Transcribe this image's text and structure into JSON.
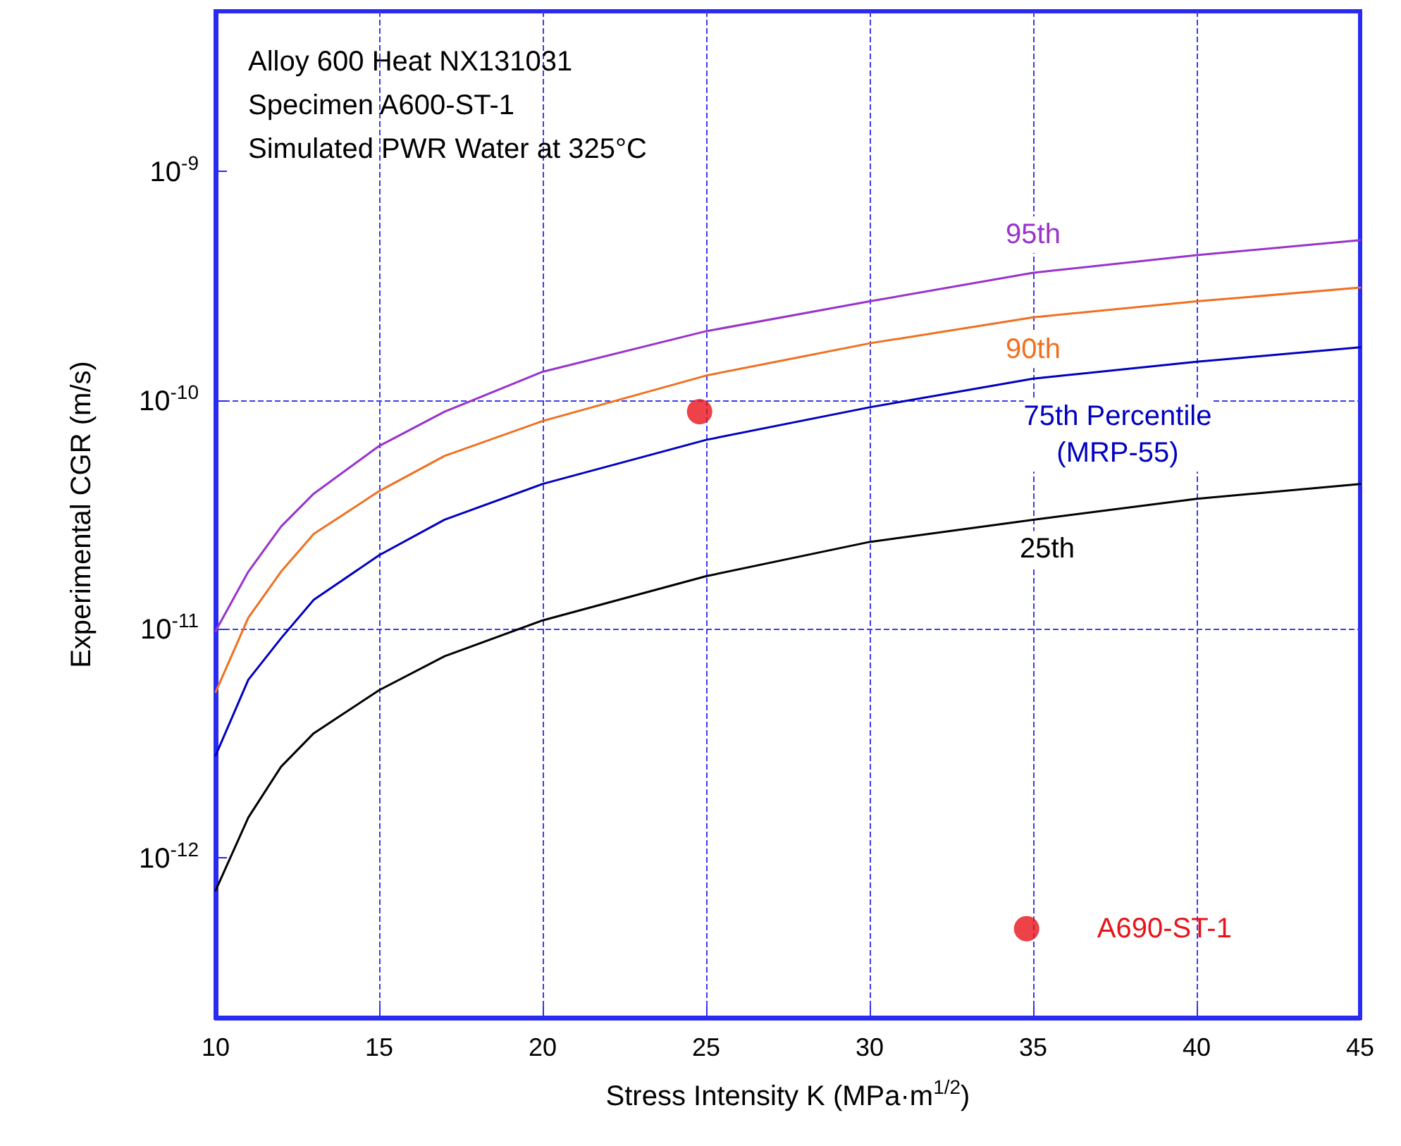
{
  "chart_data": {
    "type": "line",
    "xlabel": "Stress Intensity K (MPa·m$^{1/2}$)",
    "ylabel": "Experimental CGR (m/s)",
    "annotations": [
      "Alloy 600 Heat NX131031",
      "Specimen A600-ST-1",
      "Simulated PWR Water at 325°C"
    ],
    "x": [
      10,
      11,
      12,
      13,
      15,
      17,
      20,
      25,
      30,
      35,
      40,
      45
    ],
    "series": [
      {
        "name": "95th",
        "color": "#9933cc",
        "values": [
          9.8e-12,
          1.78e-11,
          2.8e-11,
          3.9e-11,
          6.3e-11,
          8.9e-11,
          1.33e-10,
          2e-10,
          2.7e-10,
          3.6e-10,
          4.3e-10,
          5e-10
        ]
      },
      {
        "name": "90th",
        "color": "#f07020",
        "values": [
          5.3e-12,
          1.12e-11,
          1.78e-11,
          2.6e-11,
          4e-11,
          5.7e-11,
          8.1e-11,
          1.28e-10,
          1.77e-10,
          2.3e-10,
          2.7e-10,
          3.1e-10
        ]
      },
      {
        "name": "75th Percentile\n(MRP-55)",
        "color": "#0000c0",
        "values": [
          2.8e-12,
          6e-12,
          9.1e-12,
          1.34e-11,
          2.1e-11,
          3e-11,
          4.3e-11,
          6.7e-11,
          9.3e-11,
          1.24e-10,
          1.47e-10,
          1.7e-10
        ]
      },
      {
        "name": "25th",
        "color": "#000000",
        "values": [
          7.2e-13,
          1.5e-12,
          2.5e-12,
          3.5e-12,
          5.4e-12,
          7.6e-12,
          1.09e-11,
          1.7e-11,
          2.4e-11,
          3e-11,
          3.7e-11,
          4.3e-11
        ]
      },
      {
        "type": "scatter",
        "marker": "circle",
        "color": "#e8141a",
        "x": [
          24.8
        ],
        "values": [
          8.9e-11
        ]
      },
      {
        "type": "scatter",
        "marker": "circle",
        "name": "A690-ST-1",
        "color": "#e8141a",
        "x": [
          34.8
        ],
        "values": [
          4.9e-13
        ]
      }
    ],
    "xlim": [
      10,
      45
    ],
    "xticks": [
      10,
      15,
      20,
      25,
      30,
      35,
      40,
      45
    ],
    "ylim": [
      2e-13,
      5e-09
    ],
    "yticks": [
      {
        "value": 1e-12,
        "label": "10$^{-12}$"
      },
      {
        "value": 1e-11,
        "label": "10$^{-11}$"
      },
      {
        "value": 1e-10,
        "label": "10$^{-10}$"
      },
      {
        "value": 1e-09,
        "label": "10$^{-9}$"
      }
    ],
    "log": "y",
    "grid": true,
    "line_style": "solid",
    "marker": "none"
  }
}
